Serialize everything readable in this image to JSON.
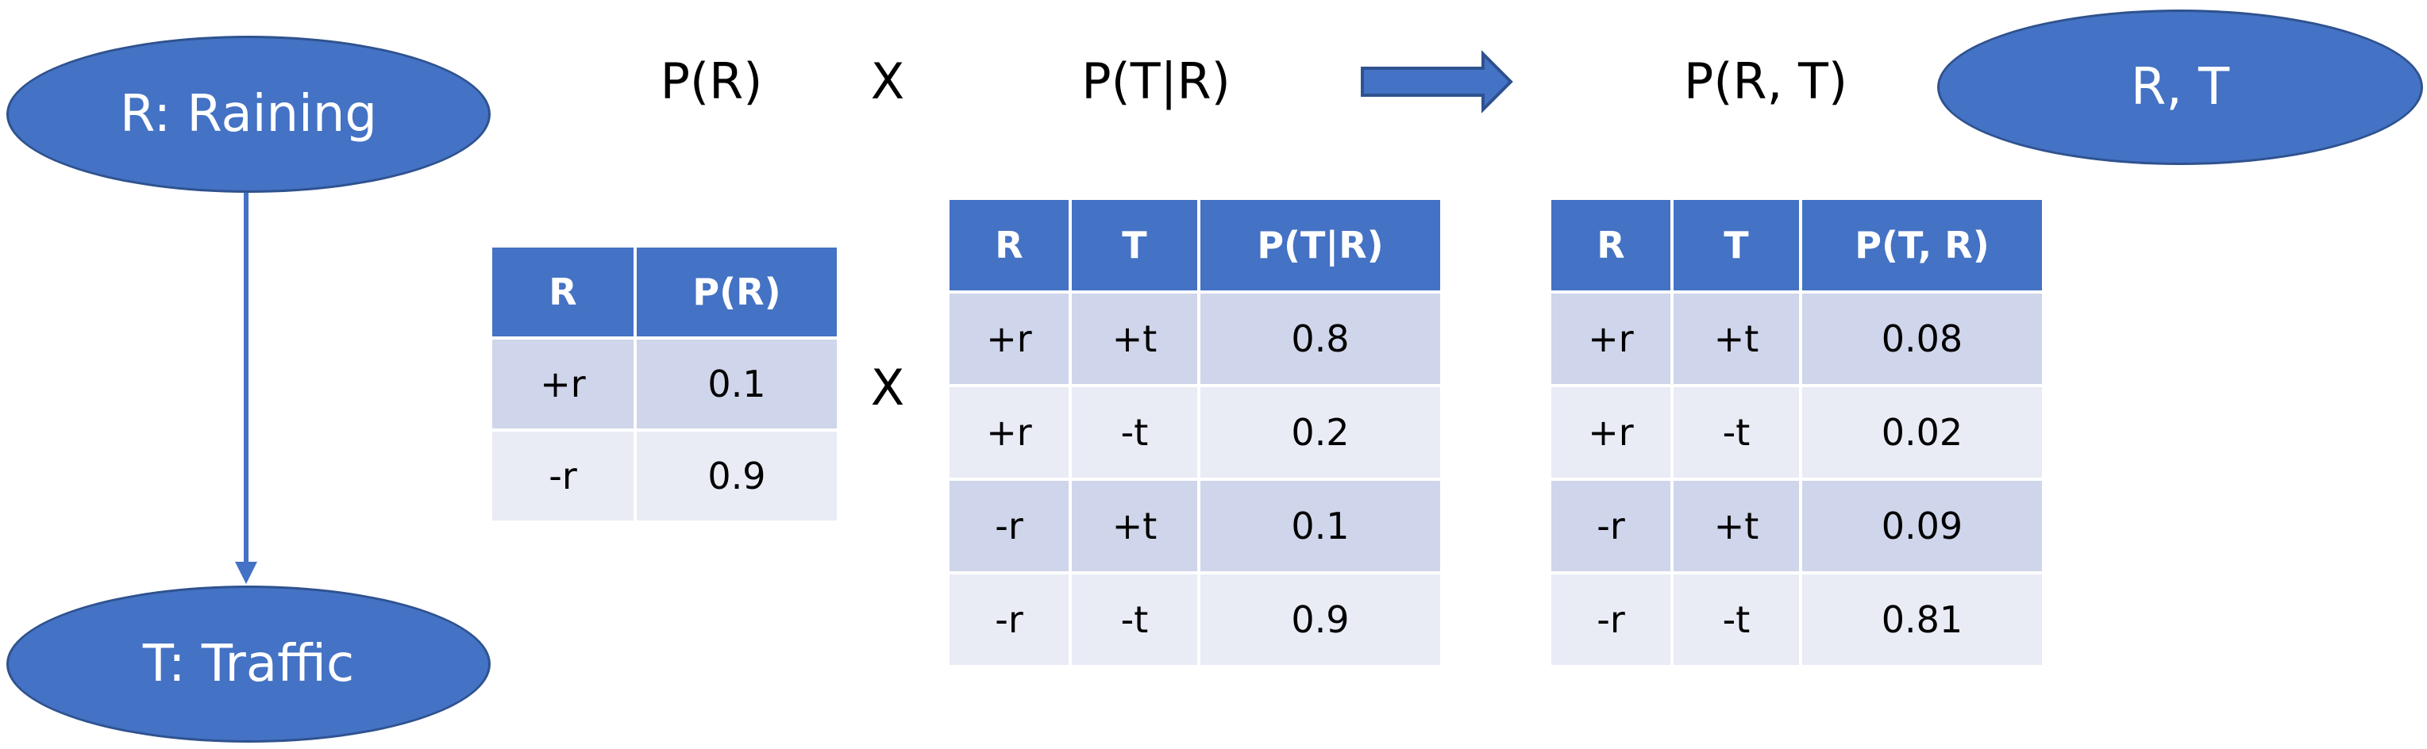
{
  "nodes": {
    "raining": "R: Raining",
    "traffic": "T: Traffic",
    "joint": "R, T"
  },
  "equation": {
    "prior": "P(R)",
    "times": "X",
    "conditional": "P(T|R)",
    "joint": "P(R, T)",
    "arrow_icon": "block-right-arrow-icon"
  },
  "table_prior": {
    "headers": [
      "R",
      "P(R)"
    ],
    "rows": [
      [
        "+r",
        "0.1"
      ],
      [
        "-r",
        "0.9"
      ]
    ]
  },
  "table_conditional": {
    "headers": [
      "R",
      "T",
      "P(T|R)"
    ],
    "rows": [
      [
        "+r",
        "+t",
        "0.8"
      ],
      [
        "+r",
        "-t",
        "0.2"
      ],
      [
        "-r",
        "+t",
        "0.1"
      ],
      [
        "-r",
        "-t",
        "0.9"
      ]
    ]
  },
  "table_joint": {
    "headers": [
      "R",
      "T",
      "P(T, R)"
    ],
    "rows": [
      [
        "+r",
        "+t",
        "0.08"
      ],
      [
        "+r",
        "-t",
        "0.02"
      ],
      [
        "-r",
        "+t",
        "0.09"
      ],
      [
        "-r",
        "-t",
        "0.81"
      ]
    ]
  },
  "colors": {
    "node_fill": "#4472c4",
    "node_border": "#2f528f",
    "header_fill": "#4472c4",
    "row_odd": "#cfd5ea",
    "row_even": "#e9ebf5"
  }
}
